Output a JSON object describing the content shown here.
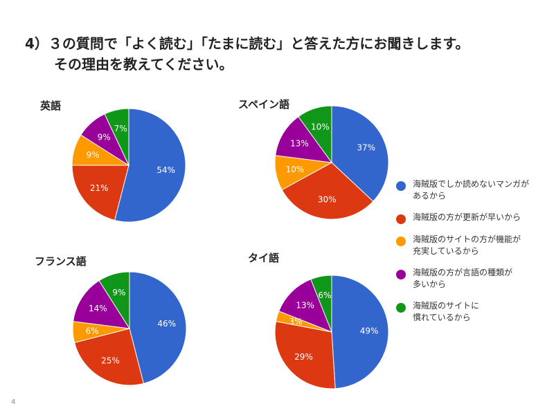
{
  "title": {
    "line1": "4）３の質問で「よく読む」「たまに読む」と答えた方にお聞きします。",
    "line2": "その理由を教えてください。"
  },
  "page_number": "4",
  "colors": [
    "#3366cc",
    "#dc3912",
    "#ff9900",
    "#990099",
    "#109618"
  ],
  "legend": [
    "海賊版でしか読めないマンガが\nあるから",
    "海賊版の方が更新が早いから",
    "海賊版のサイトの方が機能が\n充実しているから",
    "海賊版の方が言語の種類が\n多いから",
    "海賊版のサイトに\n慣れているから"
  ],
  "chart_data": [
    {
      "type": "pie",
      "title": "英語",
      "categories": [
        "海賊版でしか読めないマンガがあるから",
        "海賊版の方が更新が早いから",
        "海賊版のサイトの方が機能が充実しているから",
        "海賊版の方が言語の種類が多いから",
        "海賊版のサイトに慣れているから"
      ],
      "values": [
        54,
        21,
        9,
        9,
        7
      ],
      "labels": [
        "54%",
        "21%",
        "9%",
        "9%",
        "7%"
      ]
    },
    {
      "type": "pie",
      "title": "スペイン語",
      "categories": [
        "海賊版でしか読めないマンガがあるから",
        "海賊版の方が更新が早いから",
        "海賊版のサイトの方が機能が充実しているから",
        "海賊版の方が言語の種類が多いから",
        "海賊版のサイトに慣れているから"
      ],
      "values": [
        37,
        30,
        10,
        13,
        10
      ],
      "labels": [
        "37%",
        "30%",
        "10%",
        "13%",
        "10%"
      ]
    },
    {
      "type": "pie",
      "title": "フランス語",
      "categories": [
        "海賊版でしか読めないマンガがあるから",
        "海賊版の方が更新が早いから",
        "海賊版のサイトの方が機能が充実しているから",
        "海賊版の方が言語の種類が多いから",
        "海賊版のサイトに慣れているから"
      ],
      "values": [
        46,
        25,
        6,
        14,
        9
      ],
      "labels": [
        "46%",
        "25%",
        "6%",
        "14%",
        "9%"
      ]
    },
    {
      "type": "pie",
      "title": "タイ語",
      "categories": [
        "海賊版でしか読めないマンガがあるから",
        "海賊版の方が更新が早いから",
        "海賊版のサイトの方が機能が充実しているから",
        "海賊版の方が言語の種類が多いから",
        "海賊版のサイトに慣れているから"
      ],
      "values": [
        49,
        29,
        3,
        13,
        6
      ],
      "labels": [
        "49%",
        "29%",
        "3%",
        "13%",
        "6%"
      ]
    }
  ]
}
